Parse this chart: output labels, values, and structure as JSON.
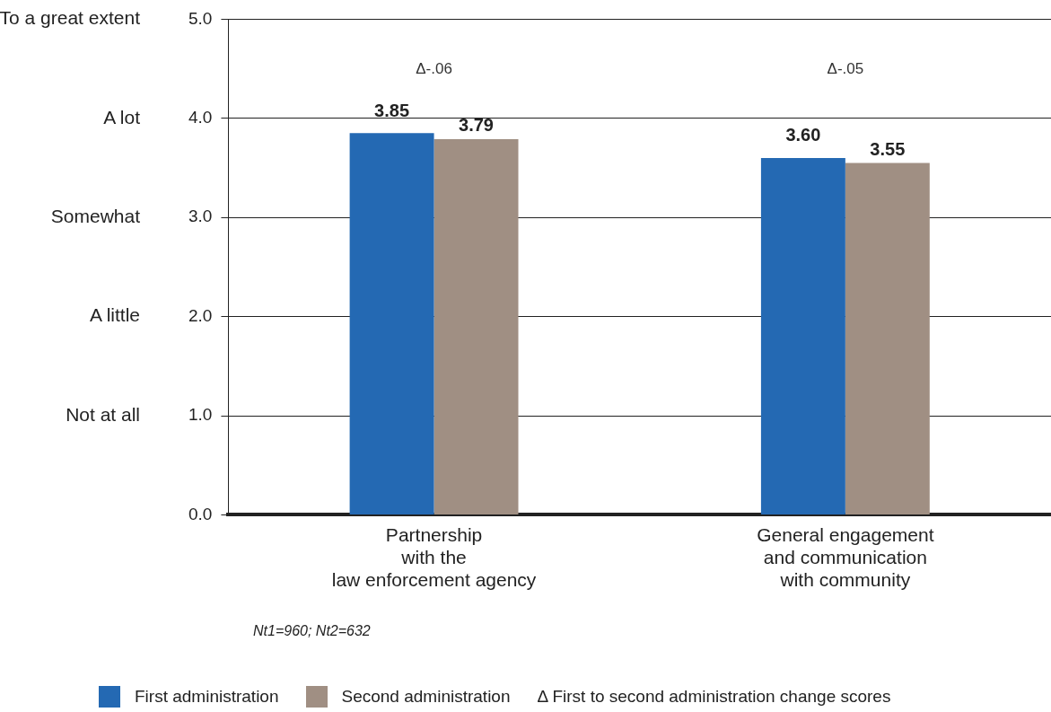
{
  "chart_data": {
    "type": "bar",
    "categories": [
      "Partnership\nwith the\nlaw enforcement agency",
      "General engagement\nand communication\nwith community"
    ],
    "series": [
      {
        "name": "First administration",
        "color": "#2469b3",
        "values": [
          3.85,
          3.6
        ],
        "value_labels": [
          "3.85",
          "3.60"
        ]
      },
      {
        "name": "Second administration",
        "color": "#a08f83",
        "values": [
          3.79,
          3.55
        ],
        "value_labels": [
          "3.79",
          "3.55"
        ]
      }
    ],
    "ylim": [
      0,
      5
    ],
    "yticks": [
      {
        "value": 0,
        "label": "0.0"
      },
      {
        "value": 1,
        "label": "1.0"
      },
      {
        "value": 2,
        "label": "2.0"
      },
      {
        "value": 3,
        "label": "3.0"
      },
      {
        "value": 4,
        "label": "4.0"
      },
      {
        "value": 5,
        "label": "5.0"
      }
    ],
    "grid": "y",
    "legend": "bottom",
    "annotations": [
      "Δ-.06",
      "Δ-.05",
      "Not at all",
      "A little",
      "Somewhat",
      "A lot",
      "To a great extent",
      "Nt1=960; Nt2=632",
      "Δ First to second administration change scores"
    ]
  }
}
